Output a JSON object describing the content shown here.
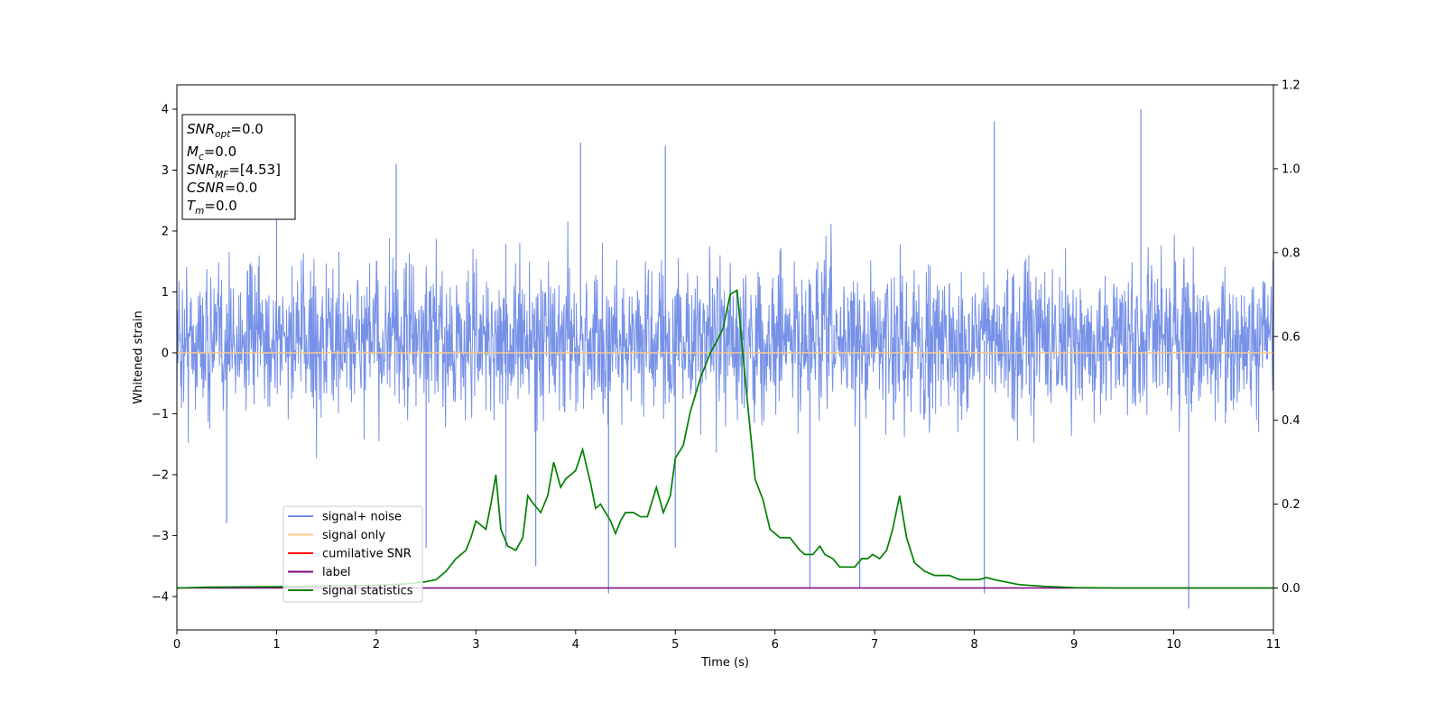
{
  "chart_data": {
    "type": "line",
    "xlabel": "Time (s)",
    "ylabel": "Whitened strain",
    "xlim": [
      0,
      11
    ],
    "ylim": [
      -4.55,
      4.4
    ],
    "y2lim": [
      -0.1,
      1.2
    ],
    "x_ticks": [
      0,
      1,
      2,
      3,
      4,
      5,
      6,
      7,
      8,
      9,
      10,
      11
    ],
    "y_ticks": [
      -4,
      -3,
      -2,
      -1,
      0,
      1,
      2,
      3,
      4
    ],
    "y2_ticks": [
      "0.0",
      "0.2",
      "0.4",
      "0.6",
      "0.8",
      "1.0",
      "1.2"
    ],
    "legend_position": "lower-left",
    "annotation_box": {
      "position": "top-left",
      "lines": [
        {
          "base": "SNR",
          "sub": "opt",
          "value": "=0.0"
        },
        {
          "base": "M",
          "sub": "c",
          "value": "=0.0"
        },
        {
          "base": "SNR",
          "sub": "MF",
          "value": "=[4.53]"
        },
        {
          "base": "CSNR",
          "sub": "",
          "value": "=0.0"
        },
        {
          "base": "T",
          "sub": "m",
          "value": "=0.0"
        }
      ]
    },
    "series": [
      {
        "name": "signal+ noise",
        "color": "#6f8be6",
        "axis": "left",
        "kind": "noise",
        "noise_band": [
          -1.9,
          2.3
        ],
        "spikes": [
          {
            "x": 0.5,
            "y": -2.8
          },
          {
            "x": 1.0,
            "y": 3.0
          },
          {
            "x": 2.2,
            "y": 3.1
          },
          {
            "x": 2.5,
            "y": -3.2
          },
          {
            "x": 3.3,
            "y": -3.2
          },
          {
            "x": 3.6,
            "y": -3.5
          },
          {
            "x": 4.05,
            "y": 3.45
          },
          {
            "x": 4.33,
            "y": -3.95
          },
          {
            "x": 4.9,
            "y": 3.4
          },
          {
            "x": 5.0,
            "y": -3.2
          },
          {
            "x": 6.35,
            "y": -3.85
          },
          {
            "x": 6.85,
            "y": -3.85
          },
          {
            "x": 8.1,
            "y": -3.95
          },
          {
            "x": 8.2,
            "y": 3.8
          },
          {
            "x": 9.67,
            "y": 4.0
          },
          {
            "x": 10.15,
            "y": -4.2
          }
        ]
      },
      {
        "name": "signal only",
        "color": "#f7c98b",
        "axis": "left",
        "x": [
          0,
          11
        ],
        "y": [
          0,
          0
        ]
      },
      {
        "name": "cumilative SNR",
        "color": "#ff0000",
        "axis": "right",
        "x": [],
        "y": []
      },
      {
        "name": "label",
        "color": "#800080",
        "axis": "right",
        "x": [
          0,
          11
        ],
        "y": [
          0,
          0
        ]
      },
      {
        "name": "signal statistics",
        "color": "#008000",
        "axis": "right",
        "x": [
          0,
          0.3,
          1.0,
          1.5,
          2.0,
          2.3,
          2.5,
          2.6,
          2.7,
          2.8,
          2.9,
          2.95,
          3.0,
          3.1,
          3.15,
          3.2,
          3.25,
          3.32,
          3.4,
          3.47,
          3.52,
          3.58,
          3.65,
          3.72,
          3.78,
          3.85,
          3.9,
          4.0,
          4.07,
          4.15,
          4.2,
          4.25,
          4.3,
          4.35,
          4.4,
          4.45,
          4.5,
          4.58,
          4.65,
          4.72,
          4.81,
          4.88,
          4.95,
          5.0,
          5.08,
          5.15,
          5.25,
          5.35,
          5.42,
          5.48,
          5.55,
          5.62,
          5.7,
          5.8,
          5.88,
          5.95,
          6.05,
          6.15,
          6.25,
          6.3,
          6.38,
          6.45,
          6.5,
          6.58,
          6.65,
          6.72,
          6.8,
          6.87,
          6.93,
          6.98,
          7.05,
          7.12,
          7.18,
          7.25,
          7.32,
          7.4,
          7.5,
          7.6,
          7.65,
          7.75,
          7.85,
          7.95,
          8.05,
          8.12,
          8.2,
          8.3,
          8.45,
          8.7,
          9.0,
          9.5,
          10.0,
          11.0
        ],
        "y": [
          0.0,
          0.002,
          0.003,
          0.005,
          0.006,
          0.01,
          0.015,
          0.02,
          0.04,
          0.07,
          0.09,
          0.12,
          0.16,
          0.14,
          0.2,
          0.27,
          0.14,
          0.1,
          0.09,
          0.12,
          0.22,
          0.2,
          0.18,
          0.22,
          0.3,
          0.24,
          0.26,
          0.28,
          0.33,
          0.25,
          0.19,
          0.2,
          0.18,
          0.16,
          0.13,
          0.16,
          0.18,
          0.18,
          0.17,
          0.17,
          0.24,
          0.18,
          0.22,
          0.31,
          0.34,
          0.42,
          0.5,
          0.56,
          0.59,
          0.62,
          0.7,
          0.71,
          0.5,
          0.26,
          0.21,
          0.14,
          0.12,
          0.12,
          0.09,
          0.08,
          0.08,
          0.1,
          0.08,
          0.07,
          0.05,
          0.05,
          0.05,
          0.07,
          0.07,
          0.08,
          0.07,
          0.09,
          0.14,
          0.22,
          0.12,
          0.06,
          0.04,
          0.03,
          0.03,
          0.03,
          0.02,
          0.02,
          0.02,
          0.025,
          0.02,
          0.015,
          0.008,
          0.004,
          0.001,
          0.0,
          0.0,
          0.0
        ]
      }
    ]
  }
}
